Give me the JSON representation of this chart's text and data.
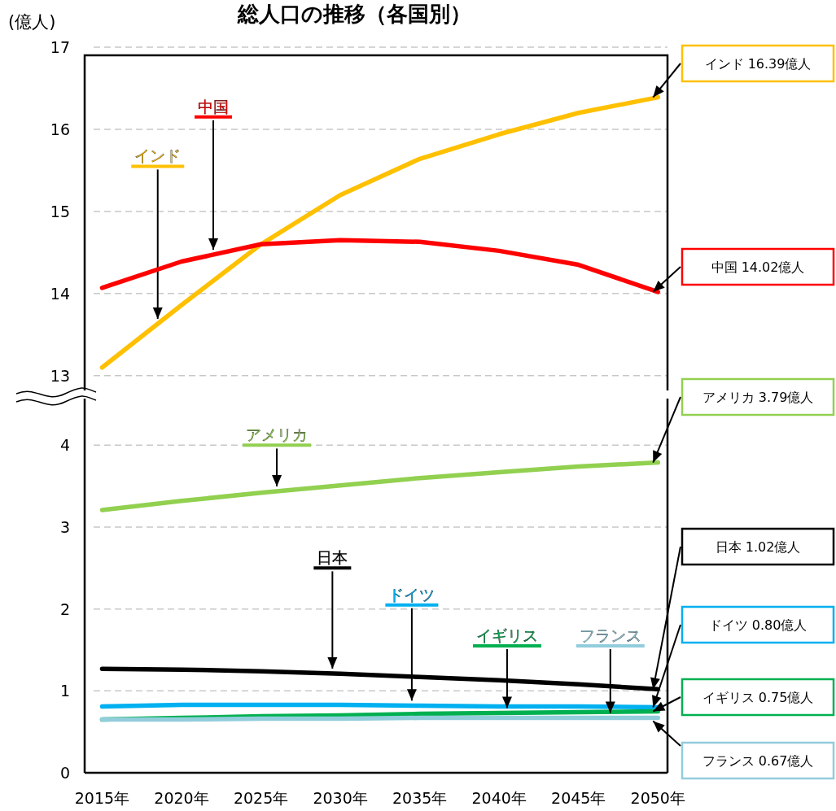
{
  "chart_data": [
    {
      "type": "line",
      "title": "総人口の推移（各国別）",
      "ylabel": "(億人)",
      "x": [
        2015,
        2020,
        2025,
        2030,
        2035,
        2040,
        2045,
        2050
      ],
      "xlim": [
        2013.9,
        2050.6
      ],
      "ylim": [
        12.82,
        17
      ],
      "yticks": [
        13,
        14,
        15,
        16,
        17
      ],
      "tick_labels": "y",
      "grid": "y",
      "line_style": "solid",
      "marker": "none",
      "series": [
        {
          "name": "インド",
          "color": "#ffc000",
          "values": [
            13.1,
            13.86,
            14.6,
            15.2,
            15.64,
            15.94,
            16.2,
            16.39
          ]
        },
        {
          "name": "中国",
          "color": "#ff0000",
          "values": [
            14.07,
            14.39,
            14.6,
            14.65,
            14.63,
            14.52,
            14.35,
            14.02
          ]
        }
      ],
      "annotations": [
        "インド 16.39億人",
        "中国 14.02億人"
      ]
    },
    {
      "type": "line",
      "x": [
        2015,
        2020,
        2025,
        2030,
        2035,
        2040,
        2045,
        2050
      ],
      "xlim": [
        2013.9,
        2050.6
      ],
      "xticks": [
        {
          "value": 2015,
          "label": "2015年"
        },
        {
          "value": 2020,
          "label": "2020年"
        },
        {
          "value": 2025,
          "label": "2025年"
        },
        {
          "value": 2030,
          "label": "2030年"
        },
        {
          "value": 2035,
          "label": "2035年"
        },
        {
          "value": 2040,
          "label": "2040年"
        },
        {
          "value": 2045,
          "label": "2045年"
        },
        {
          "value": 2050,
          "label": "2050年"
        }
      ],
      "ylim": [
        0,
        4.57
      ],
      "yticks": [
        0,
        1,
        2,
        3,
        4
      ],
      "grid": "y",
      "line_style": "solid",
      "marker": "none",
      "series": [
        {
          "name": "アメリカ",
          "color": "#92d050",
          "values": [
            3.21,
            3.32,
            3.42,
            3.51,
            3.6,
            3.67,
            3.74,
            3.79
          ]
        },
        {
          "name": "日本",
          "color": "#000000",
          "values": [
            1.27,
            1.26,
            1.24,
            1.21,
            1.17,
            1.13,
            1.08,
            1.02
          ]
        },
        {
          "name": "ドイツ",
          "color": "#00b0f0",
          "values": [
            0.81,
            0.83,
            0.83,
            0.83,
            0.82,
            0.81,
            0.81,
            0.8
          ]
        },
        {
          "name": "イギリス",
          "color": "#00b050",
          "values": [
            0.65,
            0.67,
            0.69,
            0.7,
            0.72,
            0.73,
            0.74,
            0.75
          ]
        },
        {
          "name": "フランス",
          "color": "#92cddc",
          "values": [
            0.65,
            0.65,
            0.66,
            0.66,
            0.67,
            0.67,
            0.67,
            0.67
          ]
        }
      ],
      "annotations": [
        "アメリカ 3.79億人",
        "日本 1.02億人",
        "ドイツ 0.80億人",
        "イギリス 0.75億人",
        "フランス 0.67億人"
      ]
    }
  ]
}
